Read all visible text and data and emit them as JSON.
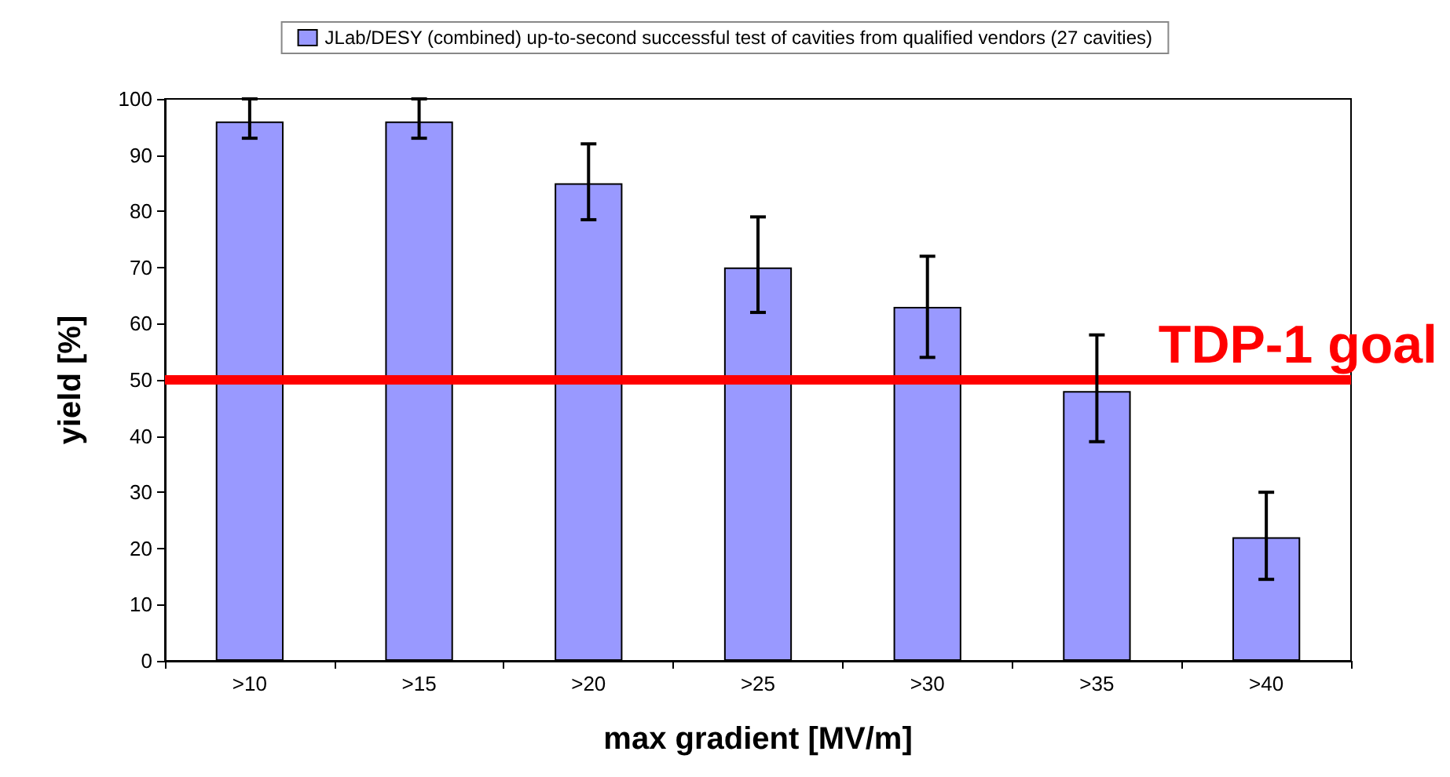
{
  "chart_data": {
    "type": "bar",
    "xlabel": "max gradient [MV/m]",
    "ylabel": "yield [%]",
    "categories": [
      ">10",
      ">15",
      ">20",
      ">25",
      ">30",
      ">35",
      ">40"
    ],
    "series": [
      {
        "name": "JLab/DESY (combined) up-to-second successful test of cavities from qualified vendors (27 cavities)",
        "color": "#9999ff",
        "values": [
          96,
          96,
          85,
          70,
          63,
          48,
          22
        ],
        "errors": [
          [
            93,
            100
          ],
          [
            93,
            100
          ],
          [
            78.5,
            92
          ],
          [
            62,
            79
          ],
          [
            54,
            72
          ],
          [
            39,
            58
          ],
          [
            14.5,
            30
          ]
        ]
      }
    ],
    "ylim": [
      0,
      100
    ],
    "yticks": [
      0,
      10,
      20,
      30,
      40,
      50,
      60,
      70,
      80,
      90,
      100
    ],
    "grid": false,
    "legend": "top",
    "ref_lines": [
      {
        "axis": "y",
        "value": 50,
        "label": "TDP-1 goal",
        "color": "#ff0000"
      }
    ]
  }
}
